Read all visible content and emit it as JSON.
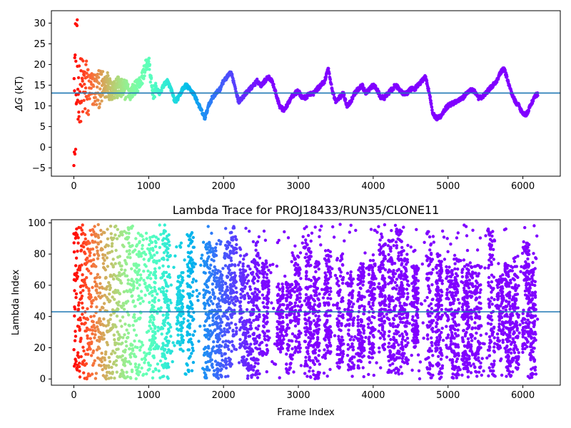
{
  "chart_data": [
    {
      "type": "scatter",
      "title": "",
      "xlabel": "",
      "ylabel": "ΔG (kT)",
      "ylabel_symbol": "ΔG",
      "ylabel_unit": "(kT)",
      "xlim": [
        -300,
        6500
      ],
      "ylim": [
        -7,
        33
      ],
      "xticks": [
        0,
        1000,
        2000,
        3000,
        4000,
        5000,
        6000
      ],
      "yticks": [
        -5,
        0,
        5,
        10,
        15,
        20,
        25,
        30
      ],
      "hline": 13.1,
      "grid": false,
      "legend": "none",
      "colormap": "rainbow (red at frame 0 → purple at late frames)",
      "series": [
        {
          "trace_points": [
            [
              0,
              29
            ],
            [
              10,
              20
            ],
            [
              20,
              4
            ],
            [
              30,
              15
            ],
            [
              50,
              13
            ],
            [
              80,
              16
            ],
            [
              100,
              12
            ],
            [
              150,
              18
            ],
            [
              200,
              15
            ],
            [
              250,
              17
            ],
            [
              300,
              14
            ],
            [
              350,
              16
            ],
            [
              400,
              15
            ],
            [
              450,
              17
            ],
            [
              500,
              14
            ],
            [
              550,
              15
            ],
            [
              600,
              16
            ],
            [
              650,
              14
            ],
            [
              700,
              15
            ],
            [
              750,
              13
            ],
            [
              800,
              14
            ],
            [
              850,
              15
            ],
            [
              900,
              16
            ],
            [
              950,
              19
            ],
            [
              1000,
              21
            ],
            [
              1050,
              13
            ],
            [
              1100,
              14
            ],
            [
              1150,
              13
            ],
            [
              1200,
              15
            ],
            [
              1250,
              16
            ],
            [
              1300,
              14
            ],
            [
              1350,
              11
            ],
            [
              1400,
              12
            ],
            [
              1450,
              14
            ],
            [
              1500,
              15
            ],
            [
              1550,
              14
            ],
            [
              1600,
              13
            ],
            [
              1650,
              11
            ],
            [
              1700,
              9
            ],
            [
              1750,
              7
            ],
            [
              1800,
              10
            ],
            [
              1850,
              12
            ],
            [
              1900,
              13
            ],
            [
              1950,
              14
            ],
            [
              2000,
              16
            ],
            [
              2050,
              17
            ],
            [
              2100,
              18
            ],
            [
              2150,
              15
            ],
            [
              2200,
              11
            ],
            [
              2250,
              12
            ],
            [
              2300,
              13
            ],
            [
              2350,
              14
            ],
            [
              2400,
              15
            ],
            [
              2450,
              16
            ],
            [
              2500,
              15
            ],
            [
              2550,
              16
            ],
            [
              2600,
              17
            ],
            [
              2650,
              16
            ],
            [
              2700,
              13
            ],
            [
              2750,
              10
            ],
            [
              2800,
              9
            ],
            [
              2850,
              10
            ],
            [
              2900,
              12
            ],
            [
              2950,
              13
            ],
            [
              3000,
              13.5
            ],
            [
              3050,
              12
            ],
            [
              3100,
              12
            ],
            [
              3150,
              13
            ],
            [
              3200,
              13
            ],
            [
              3250,
              14
            ],
            [
              3300,
              15
            ],
            [
              3350,
              16
            ],
            [
              3400,
              19
            ],
            [
              3450,
              14
            ],
            [
              3500,
              11
            ],
            [
              3550,
              12
            ],
            [
              3600,
              13
            ],
            [
              3650,
              10
            ],
            [
              3700,
              11
            ],
            [
              3750,
              13
            ],
            [
              3800,
              14
            ],
            [
              3850,
              15
            ],
            [
              3900,
              13
            ],
            [
              3950,
              14
            ],
            [
              4000,
              15
            ],
            [
              4050,
              14
            ],
            [
              4100,
              12
            ],
            [
              4150,
              12
            ],
            [
              4200,
              13
            ],
            [
              4250,
              14
            ],
            [
              4300,
              15
            ],
            [
              4350,
              14
            ],
            [
              4400,
              13
            ],
            [
              4450,
              13
            ],
            [
              4500,
              14
            ],
            [
              4550,
              14
            ],
            [
              4600,
              15
            ],
            [
              4650,
              16
            ],
            [
              4700,
              17
            ],
            [
              4750,
              13
            ],
            [
              4800,
              8
            ],
            [
              4850,
              7
            ],
            [
              4900,
              7.5
            ],
            [
              4950,
              9
            ],
            [
              5000,
              10
            ],
            [
              5050,
              10.5
            ],
            [
              5100,
              11
            ],
            [
              5150,
              11.5
            ],
            [
              5200,
              12
            ],
            [
              5250,
              13
            ],
            [
              5300,
              14
            ],
            [
              5350,
              13.5
            ],
            [
              5400,
              12
            ],
            [
              5450,
              12
            ],
            [
              5500,
              13
            ],
            [
              5550,
              14
            ],
            [
              5600,
              15
            ],
            [
              5650,
              16
            ],
            [
              5700,
              18
            ],
            [
              5750,
              19
            ],
            [
              5800,
              16
            ],
            [
              5850,
              13
            ],
            [
              5900,
              11
            ],
            [
              5950,
              10
            ],
            [
              6000,
              8
            ],
            [
              6050,
              8
            ],
            [
              6100,
              10
            ],
            [
              6150,
              12
            ],
            [
              6200,
              13
            ]
          ]
        }
      ]
    },
    {
      "type": "scatter",
      "title": "Lambda Trace for PROJ18433/RUN35/CLONE11",
      "xlabel": "Frame Index",
      "ylabel": "Lambda Index",
      "xlim": [
        -300,
        6500
      ],
      "ylim": [
        -4,
        102
      ],
      "xticks": [
        0,
        1000,
        2000,
        3000,
        4000,
        5000,
        6000
      ],
      "yticks": [
        0,
        20,
        40,
        60,
        80,
        100
      ],
      "hline": 43,
      "grid": false,
      "legend": "none",
      "colormap": "rainbow (red at frame 0 → purple at late frames)",
      "series": [
        {
          "x_range": [
            0,
            6200
          ],
          "y_range": [
            0,
            99
          ],
          "band_centers": [
            1050,
            1230,
            1420,
            1560,
            1780,
            1870,
            1950,
            2050,
            2130,
            2260,
            2350,
            2440,
            2560,
            2760,
            2880,
            2990,
            3130,
            3240,
            3390,
            3560,
            3700,
            3840,
            3980,
            4120,
            4240,
            4340,
            4420,
            4560,
            4760,
            4880,
            5020,
            5100,
            5230,
            5290,
            5400,
            5580,
            5700,
            5800,
            5900,
            6040,
            6130
          ]
        }
      ]
    }
  ]
}
